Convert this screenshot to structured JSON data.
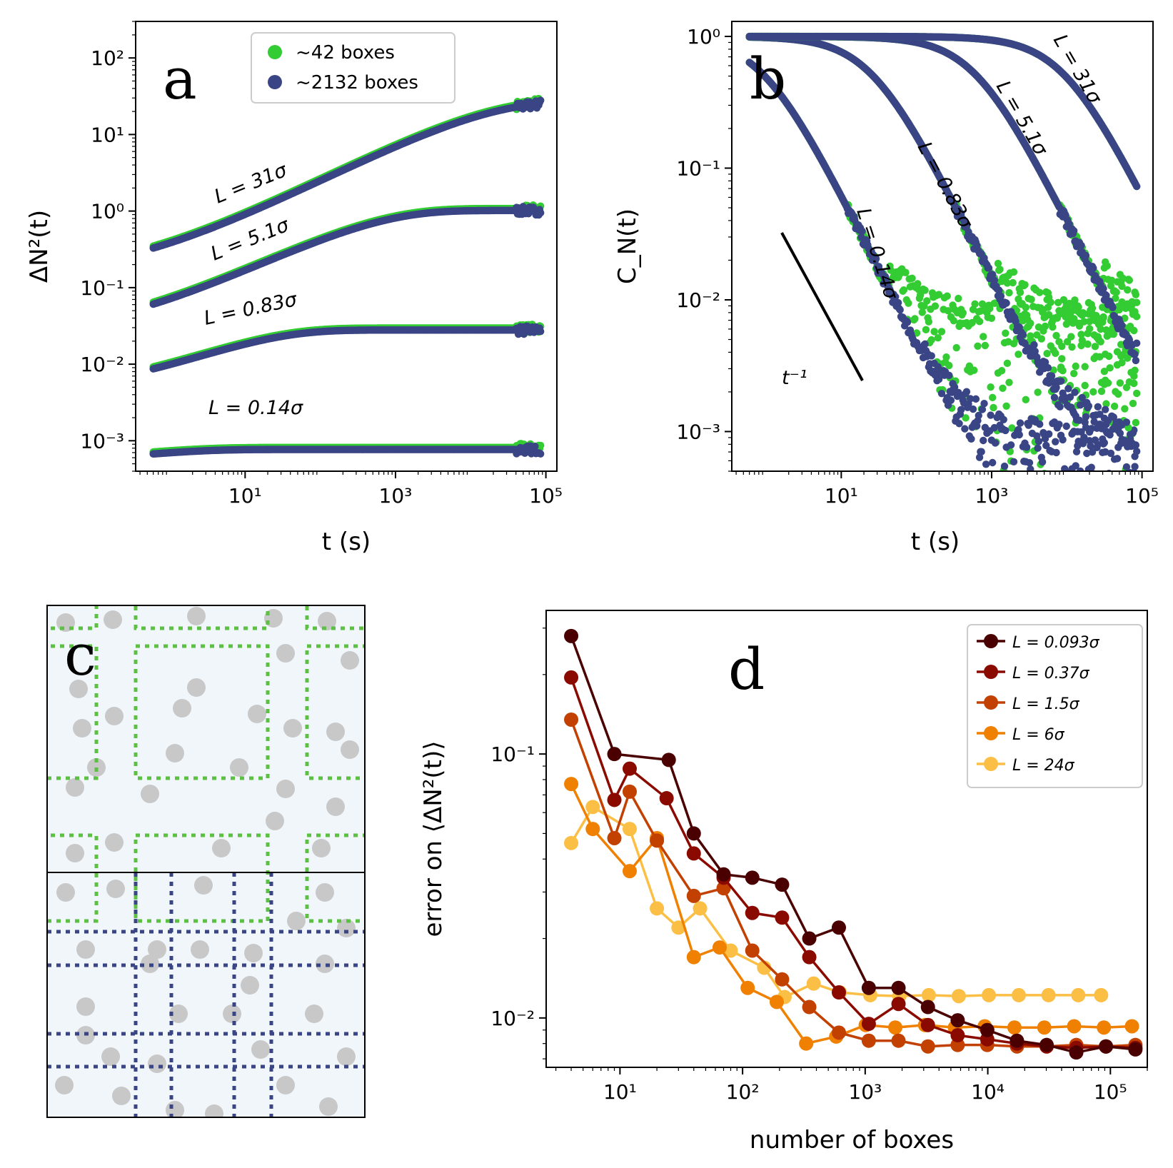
{
  "colors": {
    "green": "#33cc33",
    "navy": "#3a4585",
    "d_series": [
      "#4a0000",
      "#8b0a00",
      "#c24000",
      "#f08000",
      "#fcbf45"
    ],
    "gray_particle": "#c8c8c8",
    "panel_bg": "#f1f6fb"
  },
  "chart_data": [
    {
      "panel": "a",
      "type": "scatter",
      "xscale": "log",
      "yscale": "log",
      "xlim": [
        0.35,
        140000
      ],
      "ylim": [
        0.0004,
        300
      ],
      "xlabel": "t (s)",
      "ylabel": "ΔN²(t)",
      "x_ticks": [
        "10¹",
        "10³",
        "10⁵"
      ],
      "y_ticks": [
        "10⁻³",
        "10⁻²",
        "10⁻¹",
        "10⁰",
        "10¹",
        "10²"
      ],
      "legend": [
        "~42 boxes",
        "~2132 boxes"
      ],
      "legend_position": "top-center",
      "series": [
        {
          "name": "L = 31σ",
          "plateau": 28,
          "tau": 12000,
          "early": 0.15
        },
        {
          "name": "L = 5.1σ",
          "plateau": 1.05,
          "tau": 400,
          "early": 0.025
        },
        {
          "name": "L = 0.83σ",
          "plateau": 0.029,
          "tau": 12,
          "early": 0.0042
        },
        {
          "name": "L = 0.14σ",
          "plateau": 0.00082,
          "tau": 0.6,
          "early": 0.00055
        }
      ],
      "curve_labels": [
        "L = 31σ",
        "L = 5.1σ",
        "L = 0.83σ",
        "L = 0.14σ"
      ]
    },
    {
      "panel": "b",
      "type": "scatter",
      "xscale": "log",
      "yscale": "log",
      "xlim": [
        0.35,
        140000
      ],
      "ylim": [
        0.0005,
        1.3
      ],
      "xlabel": "t (s)",
      "ylabel": "C_N(t)",
      "x_ticks": [
        "10¹",
        "10³",
        "10⁵"
      ],
      "y_ticks": [
        "10⁻³",
        "10⁻²",
        "10⁻¹",
        "10⁰"
      ],
      "series": [
        {
          "name": "L = 0.14σ",
          "tau": 0.9
        },
        {
          "name": "L = 0.83σ",
          "tau": 25
        },
        {
          "name": "L = 5.1σ",
          "tau": 600
        },
        {
          "name": "L = 31σ",
          "tau": 9000
        }
      ],
      "guide_label": "t⁻¹",
      "curve_labels": [
        "L = 0.14σ",
        "L = 0.83σ",
        "L = 5.1σ",
        "L = 31σ"
      ]
    },
    {
      "panel": "d",
      "type": "line",
      "xscale": "log",
      "yscale": "log",
      "xlim": [
        2.5,
        200000
      ],
      "ylim": [
        0.0065,
        0.35
      ],
      "xlabel": "number of boxes",
      "ylabel": "error on ⟨ΔN²(t)⟩",
      "x_ticks": [
        "10¹",
        "10²",
        "10³",
        "10⁴",
        "10⁵"
      ],
      "y_ticks": [
        "10⁻²",
        "10⁻¹"
      ],
      "legend_position": "top-right",
      "series": [
        {
          "name": "L = 0.093σ",
          "x": [
            4,
            9,
            25,
            40,
            70,
            120,
            210,
            350,
            610,
            1070,
            1870,
            3250,
            5680,
            9900,
            17300,
            30200,
            52700,
            92000,
            160000
          ],
          "y": [
            0.28,
            0.1,
            0.095,
            0.05,
            0.035,
            0.034,
            0.032,
            0.02,
            0.022,
            0.013,
            0.013,
            0.011,
            0.0098,
            0.009,
            0.0082,
            0.0079,
            0.0074,
            0.0078,
            0.0076
          ]
        },
        {
          "name": "L = 0.37σ",
          "x": [
            4,
            9,
            12,
            24,
            40,
            70,
            120,
            210,
            350,
            610,
            1070,
            1870,
            3250,
            5680,
            9900,
            17300,
            30200,
            52700,
            92000,
            160000
          ],
          "y": [
            0.195,
            0.067,
            0.088,
            0.068,
            0.042,
            0.034,
            0.025,
            0.024,
            0.017,
            0.0125,
            0.0095,
            0.0113,
            0.0094,
            0.0086,
            0.0083,
            0.008,
            0.0078,
            0.0077,
            0.0078,
            0.0077
          ]
        },
        {
          "name": "L = 1.5σ",
          "x": [
            4,
            9,
            12,
            20,
            40,
            70,
            120,
            210,
            350,
            610,
            1070,
            1870,
            3250,
            5680,
            9900,
            17300,
            30200,
            52700,
            92000,
            160000
          ],
          "y": [
            0.135,
            0.048,
            0.072,
            0.047,
            0.029,
            0.031,
            0.018,
            0.014,
            0.011,
            0.0088,
            0.0082,
            0.0082,
            0.0078,
            0.0079,
            0.0079,
            0.0078,
            0.0078,
            0.0079,
            0.0078,
            0.0079
          ]
        },
        {
          "name": "L = 6σ",
          "x": [
            4,
            6,
            12,
            20,
            40,
            65,
            110,
            190,
            330,
            580,
            1010,
            1760,
            3080,
            5390,
            9440,
            16500,
            28900,
            50600,
            88500,
            150000
          ],
          "y": [
            0.077,
            0.052,
            0.036,
            0.048,
            0.017,
            0.0185,
            0.013,
            0.0115,
            0.008,
            0.0085,
            0.0094,
            0.0092,
            0.0094,
            0.0092,
            0.0093,
            0.0092,
            0.0092,
            0.0093,
            0.0092,
            0.0093
          ]
        },
        {
          "name": "L = 24σ",
          "x": [
            4,
            6,
            12,
            20,
            30,
            45,
            80,
            150,
            220,
            380,
            620,
            1100,
            1900,
            3300,
            5800,
            10200,
            17900,
            31300,
            54700,
            84000
          ],
          "y": [
            0.046,
            0.063,
            0.052,
            0.026,
            0.022,
            0.026,
            0.018,
            0.0155,
            0.012,
            0.0135,
            0.0125,
            0.0122,
            0.0121,
            0.0122,
            0.0121,
            0.0122,
            0.0122,
            0.0122,
            0.0122,
            0.0122
          ]
        }
      ]
    }
  ],
  "panels": {
    "a": "a",
    "b": "b",
    "c": "c",
    "d": "d"
  }
}
